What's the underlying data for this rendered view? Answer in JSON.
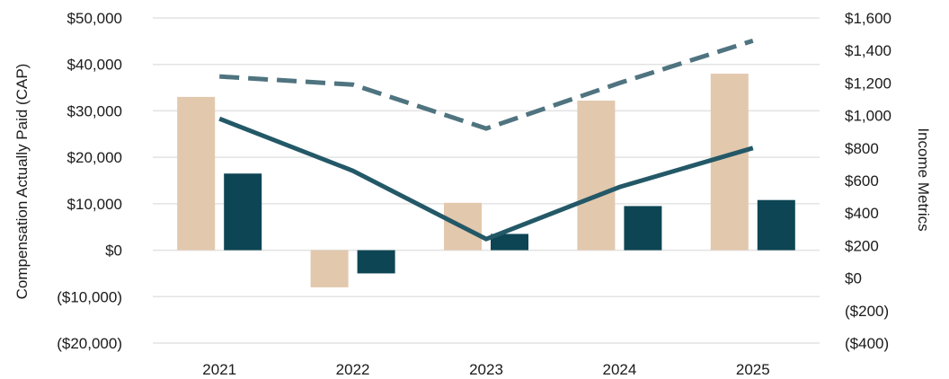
{
  "chart_data": {
    "type": "bar",
    "categories": [
      "2021",
      "2022",
      "2023",
      "2024",
      "2025"
    ],
    "ylabel": "Compensation Actually Paid (CAP)",
    "y2label": "Income Metrics",
    "ylim": [
      -20000,
      50000
    ],
    "y2lim": [
      -400,
      1600
    ],
    "y_ticks": [
      "$50,000",
      "$40,000",
      "$30,000",
      "$20,000",
      "$10,000",
      "$0",
      "($10,000)",
      "($20,000)"
    ],
    "y_tick_values": [
      50000,
      40000,
      30000,
      20000,
      10000,
      0,
      -10000,
      -20000
    ],
    "y2_ticks": [
      "$1,600",
      "$1,400",
      "$1,200",
      "$1,000",
      "$800",
      "$600",
      "$400",
      "$200",
      "$0",
      "($200)",
      "($400)"
    ],
    "y2_tick_values": [
      1600,
      1400,
      1200,
      1000,
      800,
      600,
      400,
      200,
      0,
      -200,
      -400
    ],
    "grid": true,
    "legend": "none",
    "bar_series": [
      {
        "values": [
          33000,
          -8000,
          10200,
          32200,
          38000
        ],
        "color": "#e2c8ad"
      },
      {
        "values": [
          16500,
          -5000,
          3500,
          9500,
          10800
        ],
        "color": "#0e4554"
      }
    ],
    "line_series": [
      {
        "axis": "right",
        "values": [
          1240,
          1190,
          920,
          1200,
          1460
        ],
        "color": "#4f7480",
        "style": "dashed"
      },
      {
        "axis": "right",
        "values": [
          980,
          660,
          240,
          560,
          800
        ],
        "color": "#235867",
        "style": "solid"
      }
    ]
  }
}
